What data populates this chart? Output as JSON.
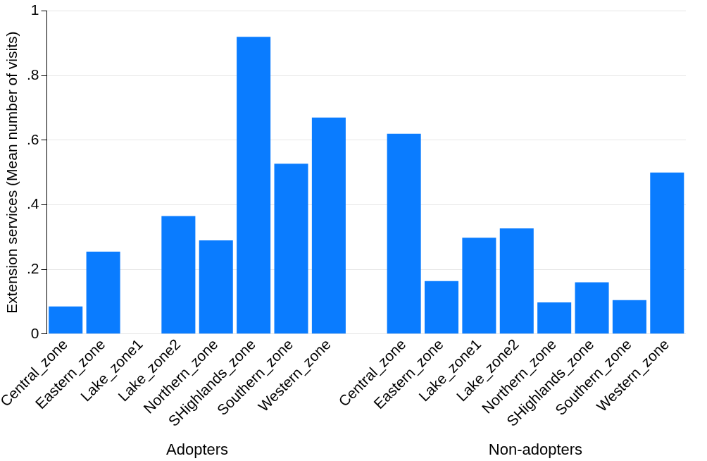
{
  "chart_data": {
    "type": "bar",
    "ylabel": "Extension services (Mean number of visits)",
    "categories": [
      "Central_zone",
      "Eastern_zone",
      "Lake_zone1",
      "Lake_zone2",
      "Northern_zone",
      "SHighlands_zone",
      "Southern_zone",
      "Western_zone",
      null,
      "Central_zone",
      "Eastern_zone",
      "Lake_zone1",
      "Lake_zone2",
      "Northern_zone",
      "SHighlands_zone",
      "Southern_zone",
      "Western_zone"
    ],
    "values": [
      0.085,
      0.255,
      0,
      0.365,
      0.29,
      0.92,
      0.527,
      0.67,
      null,
      0.62,
      0.164,
      0.298,
      0.327,
      0.098,
      0.16,
      0.105,
      0.5
    ],
    "color": "#0a7cff",
    "ylim": [
      0,
      1
    ],
    "yticks": [
      0,
      {
        "value": 0.2,
        "label": ".2"
      },
      {
        "value": 0.4,
        "label": ".4"
      },
      {
        "value": 0.6,
        "label": ".6"
      },
      {
        "value": 0.8,
        "label": ".8"
      },
      1
    ],
    "grid": "y",
    "annotations": [
      "Adopters",
      "Non-adopters"
    ]
  }
}
